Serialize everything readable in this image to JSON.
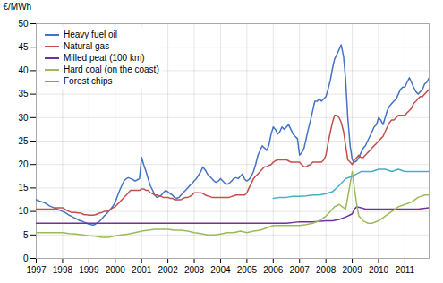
{
  "chart_data": {
    "type": "line",
    "ylabel": "€/MWh",
    "xlim": [
      1997,
      2011.92
    ],
    "xticks": [
      1997,
      1998,
      1999,
      2000,
      2001,
      2002,
      2003,
      2004,
      2005,
      2006,
      2007,
      2008,
      2009,
      2010,
      2011
    ],
    "ylim": [
      0,
      50
    ],
    "yticks": [
      0,
      5,
      10,
      15,
      20,
      25,
      30,
      35,
      40,
      45,
      50
    ],
    "grid": true,
    "legend": "top-left",
    "series": [
      {
        "name": "Heavy fuel oil",
        "color": "#4472C4",
        "x": [
          1997.0,
          1997.08,
          1997.17,
          1997.25,
          1997.33,
          1997.42,
          1997.5,
          1997.58,
          1997.67,
          1997.75,
          1997.83,
          1997.92,
          1998.0,
          1998.08,
          1998.17,
          1998.25,
          1998.33,
          1998.42,
          1998.5,
          1998.58,
          1998.67,
          1998.75,
          1998.83,
          1998.92,
          1999.0,
          1999.08,
          1999.17,
          1999.25,
          1999.33,
          1999.42,
          1999.5,
          1999.58,
          1999.67,
          1999.75,
          1999.83,
          1999.92,
          2000.0,
          2000.08,
          2000.17,
          2000.25,
          2000.33,
          2000.42,
          2000.5,
          2000.58,
          2000.67,
          2000.75,
          2000.83,
          2000.92,
          2001.0,
          2001.08,
          2001.17,
          2001.25,
          2001.33,
          2001.42,
          2001.5,
          2001.58,
          2001.67,
          2001.75,
          2001.83,
          2001.92,
          2002.0,
          2002.08,
          2002.17,
          2002.25,
          2002.33,
          2002.42,
          2002.5,
          2002.58,
          2002.67,
          2002.75,
          2002.83,
          2002.92,
          2003.0,
          2003.08,
          2003.17,
          2003.25,
          2003.33,
          2003.42,
          2003.5,
          2003.58,
          2003.67,
          2003.75,
          2003.83,
          2003.92,
          2004.0,
          2004.08,
          2004.17,
          2004.25,
          2004.33,
          2004.42,
          2004.5,
          2004.58,
          2004.67,
          2004.75,
          2004.83,
          2004.92,
          2005.0,
          2005.08,
          2005.17,
          2005.25,
          2005.33,
          2005.42,
          2005.5,
          2005.58,
          2005.67,
          2005.75,
          2005.83,
          2005.92,
          2006.0,
          2006.08,
          2006.17,
          2006.25,
          2006.33,
          2006.42,
          2006.5,
          2006.58,
          2006.67,
          2006.75,
          2006.83,
          2006.92,
          2007.0,
          2007.08,
          2007.17,
          2007.25,
          2007.33,
          2007.42,
          2007.5,
          2007.58,
          2007.67,
          2007.75,
          2007.83,
          2007.92,
          2008.0,
          2008.08,
          2008.17,
          2008.25,
          2008.33,
          2008.42,
          2008.5,
          2008.58,
          2008.67,
          2008.75,
          2008.83,
          2008.92,
          2009.0,
          2009.08,
          2009.17,
          2009.25,
          2009.33,
          2009.42,
          2009.5,
          2009.58,
          2009.67,
          2009.75,
          2009.83,
          2009.92,
          2010.0,
          2010.08,
          2010.17,
          2010.25,
          2010.33,
          2010.42,
          2010.5,
          2010.58,
          2010.67,
          2010.75,
          2010.83,
          2010.92,
          2011.0,
          2011.08,
          2011.17,
          2011.25,
          2011.33,
          2011.42,
          2011.5,
          2011.58,
          2011.67,
          2011.75,
          2011.83,
          2011.92
        ],
        "values": [
          12.5,
          12.3,
          12.1,
          12.0,
          11.8,
          11.5,
          11.2,
          11.0,
          10.8,
          10.6,
          10.4,
          10.2,
          10.0,
          9.8,
          9.5,
          9.2,
          9.0,
          8.7,
          8.5,
          8.3,
          8.0,
          7.9,
          7.7,
          7.5,
          7.3,
          7.2,
          7.1,
          7.3,
          7.6,
          8.0,
          8.5,
          9.0,
          9.5,
          10.0,
          10.5,
          11.2,
          12.0,
          13.2,
          14.5,
          15.5,
          16.5,
          17.0,
          17.2,
          17.0,
          16.8,
          16.5,
          16.7,
          17.0,
          21.5,
          20.0,
          18.5,
          17.0,
          15.5,
          14.5,
          13.5,
          13.0,
          13.2,
          13.5,
          14.0,
          14.5,
          14.2,
          13.8,
          13.5,
          13.0,
          12.8,
          13.0,
          13.5,
          14.0,
          14.5,
          15.0,
          15.5,
          16.0,
          16.5,
          17.0,
          17.8,
          18.5,
          19.5,
          18.8,
          18.0,
          17.5,
          17.0,
          16.5,
          16.2,
          16.5,
          17.0,
          16.5,
          16.0,
          15.8,
          16.0,
          16.5,
          17.0,
          17.2,
          17.0,
          17.5,
          18.0,
          16.8,
          16.5,
          16.8,
          17.5,
          18.5,
          20.0,
          22.0,
          23.0,
          24.0,
          23.5,
          23.0,
          24.0,
          26.5,
          28.0,
          27.5,
          26.5,
          27.0,
          28.0,
          27.5,
          28.0,
          28.5,
          27.5,
          26.5,
          26.0,
          25.5,
          22.0,
          22.5,
          23.5,
          25.5,
          27.5,
          29.5,
          31.5,
          33.5,
          33.5,
          34.0,
          33.5,
          34.0,
          34.5,
          36.0,
          38.0,
          40.5,
          42.5,
          43.5,
          44.5,
          45.5,
          43.0,
          38.0,
          30.0,
          24.0,
          21.0,
          20.5,
          20.8,
          21.5,
          22.5,
          23.5,
          24.0,
          25.0,
          26.0,
          27.0,
          28.0,
          28.5,
          30.0,
          29.5,
          28.5,
          30.0,
          31.5,
          32.5,
          33.0,
          33.5,
          34.0,
          35.0,
          36.0,
          36.5,
          36.5,
          37.5,
          38.5,
          37.5,
          36.5,
          35.5,
          35.0,
          35.5,
          36.0,
          37.2,
          37.5,
          38.5
        ]
      },
      {
        "name": "Natural gas",
        "color": "#C0504D",
        "x": [
          1997.0,
          1997.08,
          1997.17,
          1997.25,
          1997.33,
          1997.42,
          1997.5,
          1997.58,
          1997.67,
          1997.75,
          1997.83,
          1997.92,
          1998.0,
          1998.08,
          1998.17,
          1998.25,
          1998.33,
          1998.42,
          1998.5,
          1998.58,
          1998.67,
          1998.75,
          1998.83,
          1998.92,
          1999.0,
          1999.08,
          1999.17,
          1999.25,
          1999.33,
          1999.42,
          1999.5,
          1999.58,
          1999.67,
          1999.75,
          1999.83,
          1999.92,
          2000.0,
          2000.08,
          2000.17,
          2000.25,
          2000.33,
          2000.42,
          2000.5,
          2000.58,
          2000.67,
          2000.75,
          2000.83,
          2000.92,
          2001.0,
          2001.08,
          2001.17,
          2001.25,
          2001.33,
          2001.42,
          2001.5,
          2001.58,
          2001.67,
          2001.75,
          2001.83,
          2001.92,
          2002.0,
          2002.08,
          2002.17,
          2002.25,
          2002.33,
          2002.42,
          2002.5,
          2002.58,
          2002.67,
          2002.75,
          2002.83,
          2002.92,
          2003.0,
          2003.08,
          2003.17,
          2003.25,
          2003.33,
          2003.42,
          2003.5,
          2003.58,
          2003.67,
          2003.75,
          2003.83,
          2003.92,
          2004.0,
          2004.08,
          2004.17,
          2004.25,
          2004.33,
          2004.42,
          2004.5,
          2004.58,
          2004.67,
          2004.75,
          2004.83,
          2004.92,
          2005.0,
          2005.08,
          2005.17,
          2005.25,
          2005.33,
          2005.42,
          2005.5,
          2005.58,
          2005.67,
          2005.75,
          2005.83,
          2005.92,
          2006.0,
          2006.08,
          2006.17,
          2006.25,
          2006.33,
          2006.42,
          2006.5,
          2006.58,
          2006.67,
          2006.75,
          2006.83,
          2006.92,
          2007.0,
          2007.08,
          2007.17,
          2007.25,
          2007.33,
          2007.42,
          2007.5,
          2007.58,
          2007.67,
          2007.75,
          2007.83,
          2007.92,
          2008.0,
          2008.08,
          2008.17,
          2008.25,
          2008.33,
          2008.42,
          2008.5,
          2008.58,
          2008.67,
          2008.75,
          2008.83,
          2008.92,
          2009.0,
          2009.08,
          2009.17,
          2009.25,
          2009.33,
          2009.42,
          2009.5,
          2009.58,
          2009.67,
          2009.75,
          2009.83,
          2009.92,
          2010.0,
          2010.08,
          2010.17,
          2010.25,
          2010.33,
          2010.42,
          2010.5,
          2010.58,
          2010.67,
          2010.75,
          2010.83,
          2010.92,
          2011.0,
          2011.08,
          2011.17,
          2011.25,
          2011.33,
          2011.42,
          2011.5,
          2011.58,
          2011.67,
          2011.75,
          2011.83,
          2011.92
        ],
        "values": [
          10.5,
          10.5,
          10.5,
          10.5,
          10.5,
          10.5,
          10.5,
          10.5,
          10.5,
          10.8,
          10.8,
          10.8,
          10.8,
          10.5,
          10.2,
          10.0,
          9.8,
          9.8,
          9.8,
          9.7,
          9.7,
          9.5,
          9.3,
          9.3,
          9.2,
          9.2,
          9.2,
          9.3,
          9.5,
          9.7,
          9.8,
          10.0,
          10.0,
          10.2,
          10.5,
          10.8,
          11.0,
          11.5,
          12.0,
          12.5,
          13.0,
          13.5,
          14.0,
          14.5,
          14.5,
          14.5,
          14.5,
          14.5,
          14.8,
          14.8,
          14.5,
          14.5,
          14.0,
          13.8,
          13.5,
          13.5,
          13.3,
          13.2,
          13.0,
          13.0,
          13.0,
          12.8,
          12.8,
          12.5,
          12.5,
          12.5,
          12.5,
          12.8,
          13.0,
          13.0,
          13.2,
          13.5,
          14.0,
          14.0,
          14.0,
          14.0,
          13.8,
          13.5,
          13.3,
          13.2,
          13.0,
          13.0,
          13.0,
          13.0,
          13.0,
          13.0,
          13.0,
          13.0,
          13.0,
          13.2,
          13.3,
          13.5,
          13.5,
          13.5,
          13.5,
          13.5,
          14.0,
          15.0,
          16.0,
          17.0,
          17.5,
          18.0,
          18.5,
          19.0,
          19.5,
          19.5,
          19.8,
          20.0,
          20.5,
          20.8,
          21.0,
          21.0,
          21.0,
          21.0,
          21.0,
          20.8,
          20.5,
          20.5,
          20.5,
          20.5,
          20.5,
          20.0,
          19.5,
          19.5,
          19.8,
          20.0,
          20.5,
          20.5,
          20.5,
          20.5,
          20.5,
          21.0,
          22.0,
          24.5,
          27.0,
          29.0,
          30.5,
          30.5,
          30.0,
          29.0,
          27.0,
          24.0,
          21.0,
          20.5,
          20.0,
          21.0,
          21.5,
          22.0,
          21.5,
          21.5,
          22.0,
          22.5,
          23.0,
          23.5,
          24.0,
          24.5,
          25.0,
          25.5,
          26.0,
          27.0,
          28.0,
          29.0,
          29.5,
          29.5,
          30.0,
          30.5,
          30.5,
          30.5,
          30.5,
          31.0,
          31.5,
          32.0,
          33.0,
          33.5,
          34.0,
          34.5,
          34.5,
          35.0,
          35.5,
          36.0
        ]
      },
      {
        "name": "Milled peat (100 km)",
        "color": "#7030A0",
        "x": [
          1997.0,
          1997.5,
          1998.0,
          1998.5,
          1999.0,
          1999.5,
          2000.0,
          2000.5,
          2001.0,
          2001.5,
          2002.0,
          2002.5,
          2003.0,
          2003.5,
          2004.0,
          2004.5,
          2005.0,
          2005.5,
          2006.0,
          2006.5,
          2007.0,
          2007.5,
          2008.0,
          2008.25,
          2008.5,
          2008.75,
          2009.0,
          2009.08,
          2009.17,
          2009.33,
          2009.5,
          2009.75,
          2010.0,
          2010.5,
          2011.0,
          2011.5,
          2011.92
        ],
        "values": [
          7.5,
          7.5,
          7.5,
          7.5,
          7.5,
          7.5,
          7.5,
          7.5,
          7.5,
          7.5,
          7.5,
          7.5,
          7.5,
          7.5,
          7.5,
          7.5,
          7.5,
          7.5,
          7.5,
          7.5,
          7.8,
          7.8,
          8.0,
          8.0,
          8.3,
          8.8,
          9.5,
          10.5,
          11.0,
          10.8,
          10.5,
          10.5,
          10.5,
          10.5,
          10.5,
          10.5,
          10.8
        ]
      },
      {
        "name": "Hard coal (on the coast)",
        "color": "#9BBB59",
        "x": [
          1997.0,
          1997.25,
          1997.5,
          1997.75,
          1998.0,
          1998.25,
          1998.5,
          1998.75,
          1999.0,
          1999.25,
          1999.5,
          1999.75,
          2000.0,
          2000.25,
          2000.5,
          2000.75,
          2001.0,
          2001.25,
          2001.5,
          2001.75,
          2002.0,
          2002.25,
          2002.5,
          2002.75,
          2003.0,
          2003.25,
          2003.5,
          2003.75,
          2004.0,
          2004.25,
          2004.5,
          2004.75,
          2005.0,
          2005.25,
          2005.5,
          2005.75,
          2006.0,
          2006.25,
          2006.5,
          2006.75,
          2007.0,
          2007.25,
          2007.5,
          2007.75,
          2008.0,
          2008.17,
          2008.33,
          2008.5,
          2008.67,
          2008.75,
          2009.0,
          2009.08,
          2009.17,
          2009.25,
          2009.42,
          2009.58,
          2009.75,
          2010.0,
          2010.25,
          2010.5,
          2010.75,
          2011.0,
          2011.25,
          2011.5,
          2011.75,
          2011.92
        ],
        "values": [
          5.5,
          5.5,
          5.5,
          5.5,
          5.5,
          5.3,
          5.2,
          5.0,
          4.8,
          4.7,
          4.5,
          4.5,
          4.8,
          5.0,
          5.2,
          5.5,
          5.8,
          6.0,
          6.2,
          6.2,
          6.2,
          6.0,
          6.0,
          5.8,
          5.5,
          5.3,
          5.0,
          5.0,
          5.2,
          5.5,
          5.5,
          5.8,
          5.5,
          5.8,
          6.0,
          6.5,
          7.0,
          7.0,
          7.0,
          7.0,
          7.0,
          7.2,
          7.5,
          8.0,
          9.0,
          10.0,
          11.0,
          11.5,
          10.8,
          10.5,
          18.5,
          15.0,
          11.5,
          9.0,
          8.0,
          7.5,
          7.5,
          8.0,
          9.0,
          10.0,
          11.0,
          11.5,
          12.0,
          13.0,
          13.5,
          13.5
        ]
      },
      {
        "name": "Forest chips",
        "color": "#4BACC6",
        "x": [
          2006.0,
          2006.25,
          2006.5,
          2006.75,
          2007.0,
          2007.25,
          2007.5,
          2007.75,
          2008.0,
          2008.25,
          2008.5,
          2008.67,
          2008.75,
          2009.0,
          2009.17,
          2009.33,
          2009.5,
          2009.75,
          2010.0,
          2010.25,
          2010.5,
          2010.75,
          2011.0,
          2011.25,
          2011.5,
          2011.75,
          2011.92
        ],
        "values": [
          12.8,
          13.0,
          13.0,
          13.2,
          13.2,
          13.3,
          13.5,
          13.5,
          13.8,
          14.2,
          15.5,
          16.5,
          17.0,
          17.5,
          18.0,
          18.5,
          18.5,
          18.5,
          19.0,
          19.0,
          18.5,
          19.0,
          18.5,
          18.5,
          18.5,
          18.5,
          18.5
        ]
      }
    ]
  }
}
